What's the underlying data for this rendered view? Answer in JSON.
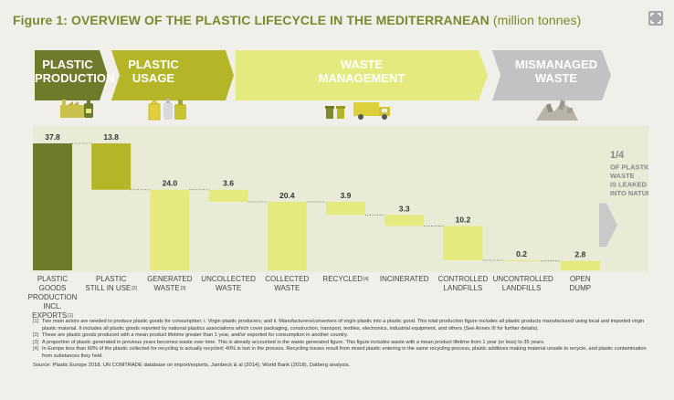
{
  "title": "Figure 1: OVERVIEW OF THE PLASTIC LIFECYCLE IN THE MEDITERRANEAN",
  "title_unit": "(million tonnes)",
  "stages": [
    {
      "line1": "PLASTIC",
      "line2": "PRODUCTION",
      "color": "#6f7a2b",
      "icon": "factory-bottle-icon"
    },
    {
      "line1": "PLASTIC",
      "line2": "USAGE",
      "color": "#b5b627",
      "icon": "plastic-bags-bottles-icon"
    },
    {
      "line1": "WASTE",
      "line2": "MANAGEMENT",
      "color": "#e4ea7e",
      "icon": "bins-garbage-truck-icon"
    },
    {
      "line1": "MISMANAGED",
      "line2": "WASTE",
      "color": "#c2c2c2",
      "icon": "waste-pile-icon"
    }
  ],
  "chart_data": {
    "type": "bar",
    "subtype": "waterfall",
    "categories": [
      {
        "line1": "PLASTIC GOODS",
        "line2": "PRODUCTION",
        "line3": "INCL. EXPORTS",
        "note": "[1]"
      },
      {
        "line1": "PLASTIC",
        "line2": "STILL IN USE",
        "note": "[2]"
      },
      {
        "line1": "GENERATED",
        "line2": "WASTE",
        "note": "[3]"
      },
      {
        "line1": "UNCOLLECTED",
        "line2": "WASTE"
      },
      {
        "line1": "COLLECTED",
        "line2": "WASTE"
      },
      {
        "line1": "RECYCLED",
        "note": "[4]"
      },
      {
        "line1": "INCINERATED"
      },
      {
        "line1": "CONTROLLED",
        "line2": "LANDFILLS"
      },
      {
        "line1": "UNCONTROLLED",
        "line2": "LANDFILLS"
      },
      {
        "line1": "OPEN",
        "line2": "DUMP"
      }
    ],
    "values": [
      37.8,
      13.8,
      24.0,
      3.6,
      20.4,
      3.9,
      3.3,
      10.2,
      0.2,
      2.8
    ],
    "value_labels": [
      "37.8",
      "13.8",
      "24.0",
      "3.6",
      "20.4",
      "3.9",
      "3.3",
      "10.2",
      "0.2",
      "2.8"
    ],
    "bar_top": [
      37.8,
      37.8,
      24.0,
      24.0,
      20.4,
      20.4,
      16.5,
      13.2,
      3.0,
      2.8
    ],
    "bar_colors": [
      "#6f7a2b",
      "#b5b627",
      "#e4ea7e",
      "#e4ea7e",
      "#e4ea7e",
      "#e4ea7e",
      "#e4ea7e",
      "#e4ea7e",
      "#e4ea7e",
      "#e4ea7e"
    ],
    "ylim": [
      0,
      37.8
    ],
    "annotation": {
      "line1": "1/4",
      "line2": "OF PLASTIC",
      "line3": "WASTE",
      "line4": "IS LEAKED",
      "line5": "INTO NATURE"
    }
  },
  "footnotes": [
    {
      "num": "[1]",
      "text": "Two main actors are needed to produce plastic goods for consumption: i. Virgin plastic producers; and ii. Manufacturers/converters of virgin plastic into a plastic good. This total production figure includes all plastic products manufactured using local and imported virgin plastic material. It includes all plastic goods reported by national plastics associations which cover packaging, construction, transport, textiles, electronics, industrial equipment, and others (See Annex III for further details)."
    },
    {
      "num": "[2]",
      "text": "These are plastic goods produced with a mean product lifetime greater than 1 year, and/or exported for consumption in another country."
    },
    {
      "num": "[3]",
      "text": "A proportion of plastic generated in previous years becomes waste over time. This is already accounted in the waste generated figure. This figure includes waste with a mean product lifetime from 1 year (or less) to 35 years."
    },
    {
      "num": "[4]",
      "text": "In Europe less than 60% of the plastic collected for recycling is actually recycled; 40% is lost in the process. Recycling losses result from mixed plastic entering in the same recycling process, plastic additives making material unsafe to recycle, and plastic contamination from substances they held."
    }
  ],
  "source": "Source: Plastic Europe 2018, UN COMTRADE database on import/exports, Jambeck & al (2014), World Bank (2018), Dalberg analysis."
}
